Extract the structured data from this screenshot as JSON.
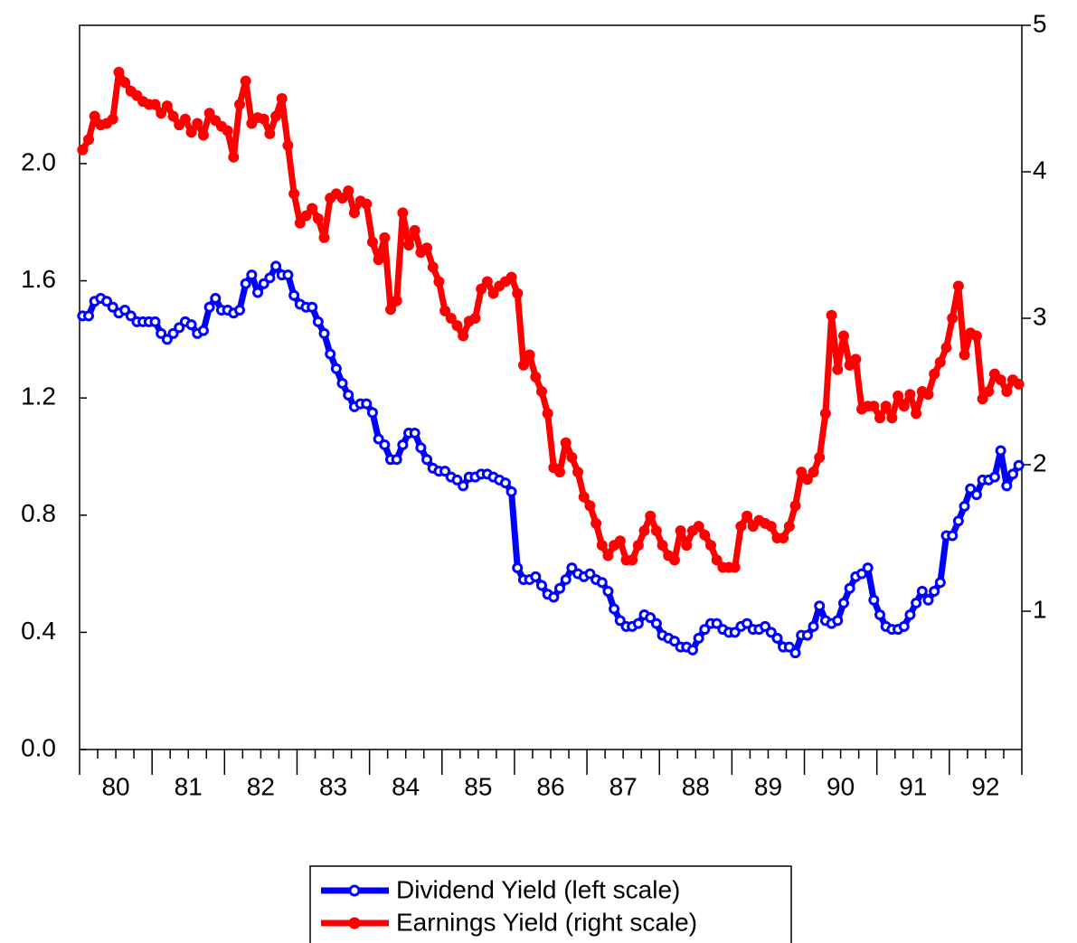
{
  "chart_data": {
    "type": "line",
    "categories": [
      null,
      null,
      null,
      null,
      null,
      null,
      "80",
      null,
      null,
      null,
      null,
      null,
      null,
      null,
      null,
      null,
      null,
      null,
      "81",
      null,
      null,
      null,
      null,
      null,
      null,
      null,
      null,
      null,
      null,
      null,
      "82",
      null,
      null,
      null,
      null,
      null,
      null,
      null,
      null,
      null,
      null,
      null,
      "83",
      null,
      null,
      null,
      null,
      null,
      null,
      null,
      null,
      null,
      null,
      null,
      "84",
      null,
      null,
      null,
      null,
      null,
      null,
      null,
      null,
      null,
      null,
      null,
      "85",
      null,
      null,
      null,
      null,
      null,
      null,
      null,
      null,
      null,
      null,
      null,
      "86",
      null,
      null,
      null,
      null,
      null,
      null,
      null,
      null,
      null,
      null,
      null,
      "87",
      null,
      null,
      null,
      null,
      null,
      null,
      null,
      null,
      null,
      null,
      null,
      "88",
      null,
      null,
      null,
      null,
      null,
      null,
      null,
      null,
      null,
      null,
      null,
      "89",
      null,
      null,
      null,
      null,
      null,
      null,
      null,
      null,
      null,
      null,
      null,
      "90",
      null,
      null,
      null,
      null,
      null,
      null,
      null,
      null,
      null,
      null,
      null,
      "91",
      null,
      null,
      null,
      null,
      null,
      null,
      null,
      null,
      null,
      null,
      null,
      "92",
      null,
      null,
      null,
      null,
      null
    ],
    "series": [
      {
        "name": "Dividend Yield (left scale)",
        "color": "#0000ff",
        "marker": "hollow",
        "values": [
          1.48,
          1.48,
          1.53,
          1.54,
          1.53,
          1.51,
          1.49,
          1.5,
          1.48,
          1.46,
          1.46,
          1.46,
          1.46,
          1.42,
          1.4,
          1.42,
          1.44,
          1.46,
          1.45,
          1.42,
          1.43,
          1.51,
          1.54,
          1.5,
          1.5,
          1.49,
          1.5,
          1.59,
          1.62,
          1.56,
          1.59,
          1.61,
          1.65,
          1.62,
          1.62,
          1.55,
          1.52,
          1.51,
          1.51,
          1.46,
          1.42,
          1.35,
          1.3,
          1.25,
          1.21,
          1.17,
          1.18,
          1.18,
          1.15,
          1.06,
          1.04,
          0.99,
          0.99,
          1.04,
          1.08,
          1.08,
          1.03,
          0.99,
          0.96,
          0.95,
          0.95,
          0.93,
          0.92,
          0.9,
          0.93,
          0.93,
          0.94,
          0.94,
          0.93,
          0.92,
          0.91,
          0.88,
          0.62,
          0.58,
          0.58,
          0.59,
          0.56,
          0.53,
          0.52,
          0.55,
          0.58,
          0.62,
          0.6,
          0.59,
          0.6,
          0.58,
          0.57,
          0.54,
          0.48,
          0.44,
          0.42,
          0.42,
          0.43,
          0.46,
          0.45,
          0.43,
          0.39,
          0.38,
          0.37,
          0.35,
          0.35,
          0.34,
          0.38,
          0.41,
          0.43,
          0.43,
          0.41,
          0.4,
          0.4,
          0.42,
          0.43,
          0.41,
          0.41,
          0.42,
          0.4,
          0.38,
          0.35,
          0.35,
          0.33,
          0.39,
          0.39,
          0.42,
          0.49,
          0.44,
          0.43,
          0.44,
          0.5,
          0.55,
          0.59,
          0.6,
          0.62,
          0.51,
          0.46,
          0.42,
          0.41,
          0.41,
          0.42,
          0.46,
          0.5,
          0.54,
          0.51,
          0.54,
          0.57,
          0.73,
          0.73,
          0.78,
          0.83,
          0.89,
          0.87,
          0.92,
          0.92,
          0.93,
          1.02,
          0.9,
          0.94,
          0.97
        ]
      },
      {
        "name": "Earnings Yield (right scale)",
        "color": "#ff0000",
        "marker": "filled",
        "axis": "y2",
        "values": [
          4.15,
          4.22,
          4.38,
          4.32,
          4.33,
          4.36,
          4.68,
          4.61,
          4.55,
          4.52,
          4.48,
          4.46,
          4.46,
          4.4,
          4.45,
          4.38,
          4.32,
          4.36,
          4.27,
          4.33,
          4.25,
          4.4,
          4.35,
          4.31,
          4.28,
          4.1,
          4.46,
          4.62,
          4.33,
          4.37,
          4.36,
          4.26,
          4.38,
          4.5,
          4.18,
          3.85,
          3.65,
          3.7,
          3.75,
          3.68,
          3.55,
          3.82,
          3.85,
          3.82,
          3.87,
          3.72,
          3.8,
          3.78,
          3.52,
          3.4,
          3.55,
          3.06,
          3.12,
          3.72,
          3.5,
          3.6,
          3.45,
          3.48,
          3.35,
          3.25,
          3.05,
          3.0,
          2.95,
          2.88,
          2.98,
          3.0,
          3.2,
          3.25,
          3.17,
          3.22,
          3.25,
          3.28,
          3.17,
          2.68,
          2.75,
          2.6,
          2.5,
          2.35,
          1.98,
          1.95,
          2.15,
          2.05,
          1.95,
          1.78,
          1.72,
          1.6,
          1.45,
          1.38,
          1.45,
          1.48,
          1.35,
          1.35,
          1.45,
          1.55,
          1.65,
          1.55,
          1.45,
          1.38,
          1.35,
          1.55,
          1.45,
          1.55,
          1.58,
          1.52,
          1.45,
          1.35,
          1.3,
          1.3,
          1.3,
          1.58,
          1.65,
          1.58,
          1.62,
          1.6,
          1.58,
          1.5,
          1.5,
          1.58,
          1.72,
          1.95,
          1.9,
          1.95,
          2.05,
          2.35,
          3.02,
          2.65,
          2.88,
          2.68,
          2.72,
          2.38,
          2.4,
          2.4,
          2.32,
          2.4,
          2.32,
          2.47,
          2.4,
          2.48,
          2.35,
          2.5,
          2.48,
          2.62,
          2.7,
          2.8,
          3.0,
          3.22,
          2.75,
          2.9,
          2.88,
          2.45,
          2.5,
          2.62,
          2.58,
          2.5,
          2.58,
          2.55
        ]
      }
    ],
    "ylim": [
      0,
      2.472
    ],
    "yticks": [
      {
        "value": 0,
        "label": "0.0"
      },
      0.4,
      0.8,
      1.2,
      1.6,
      {
        "value": 2,
        "label": "2.0"
      }
    ],
    "y2lim": [
      0.056,
      5
    ],
    "y2ticks": [
      1,
      2,
      3,
      4,
      5
    ],
    "legend": "bottom"
  }
}
